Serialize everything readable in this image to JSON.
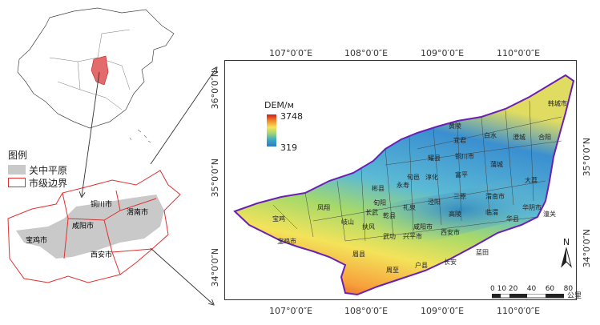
{
  "legend": {
    "title": "图例",
    "items": [
      {
        "label": "关中平原",
        "swatch": "#c9c9c9"
      },
      {
        "label": "市级边界",
        "swatch": "#ffffff",
        "border": "#e23030"
      }
    ]
  },
  "inset_labels": {
    "baoji": "宝鸡市",
    "xianyang": "咸阳市",
    "tongchuan": "铜川市",
    "weinan": "渭南市",
    "xian": "西安市"
  },
  "main_map": {
    "top_ticks": [
      "107°0′0″E",
      "108°0′0″E",
      "109°0′0″E",
      "110°0′0″E"
    ],
    "bottom_ticks": [
      "107°0′0″E",
      "108°0′0″E",
      "109°0′0″E",
      "110°0′0″E"
    ],
    "left_ticks": [
      "36°0′0″N",
      "35°0′0″N",
      "34°0′0″N"
    ],
    "right_ticks": [
      "35°0′0″N",
      "34°0′0″N"
    ],
    "dem_title": "DEM/м",
    "dem_max": "3748",
    "dem_min": "319",
    "north": "N",
    "scale_numbers": "0 10 20    40    60    80",
    "scale_unit": "公里",
    "place_labels": [
      "韩城市",
      "白水",
      "澄城",
      "合阳",
      "黄陵",
      "铜川市",
      "耀县",
      "宜君",
      "富平",
      "蒲城",
      "大荔",
      "淳化",
      "永寿",
      "泾阳",
      "三原",
      "渭南市",
      "潼关",
      "华阴市",
      "华县",
      "临渭",
      "高陵",
      "宝鸡",
      "凤翔",
      "岐山",
      "扶风",
      "乾县",
      "礼泉",
      "咸阳市",
      "武功",
      "兴平市",
      "西安市",
      "宝鸡市",
      "眉县",
      "周至",
      "户县",
      "长安",
      "蓝田",
      "旬邑",
      "彬县",
      "长武",
      "旬阳"
    ]
  }
}
